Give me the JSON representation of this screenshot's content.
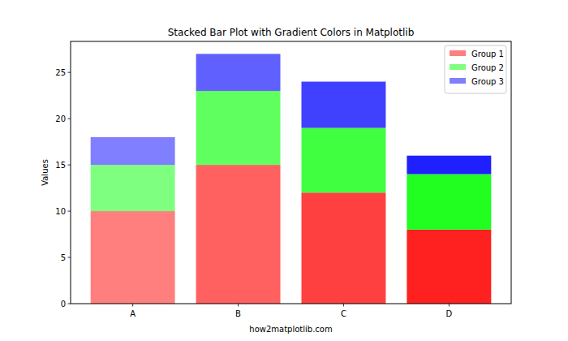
{
  "chart_data": {
    "type": "bar",
    "title": "Stacked Bar Plot with Gradient Colors in Matplotlib",
    "x_label": "how2matplotlib.com",
    "y_label": "Values",
    "categories": [
      "A",
      "B",
      "C",
      "D"
    ],
    "series": [
      {
        "name": "Group 1",
        "color": "#ff0000",
        "values": [
          10,
          15,
          12,
          8
        ]
      },
      {
        "name": "Group 2",
        "color": "#00ff00",
        "values": [
          5,
          8,
          7,
          6
        ]
      },
      {
        "name": "Group 3",
        "color": "#0000ff",
        "values": [
          3,
          4,
          5,
          2
        ]
      }
    ],
    "stacked": true,
    "legend": "upper right",
    "ylim": [
      0,
      28.35
    ],
    "yticks": [
      0,
      5,
      10,
      15,
      20,
      25
    ]
  }
}
